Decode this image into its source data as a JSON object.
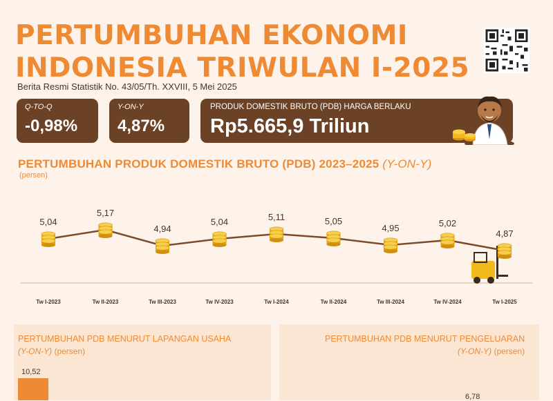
{
  "header": {
    "title_line1": "PERTUMBUHAN EKONOMI",
    "title_line2": "INDONESIA TRIWULAN I-2025",
    "subtitle": "Berita Resmi Statistik No. 43/05/Th. XXVIII, 5 Mei 2025"
  },
  "kpis": [
    {
      "label": "Q-TO-Q",
      "value": "-0,98%"
    },
    {
      "label": "Y-ON-Y",
      "value": "4,87%"
    },
    {
      "label": "PRODUK DOMESTIK BRUTO (PDB) HARGA BERLAKU",
      "value": "Rp5.665,9 Triliun"
    }
  ],
  "section": {
    "title": "PERTUMBUHAN PRODUK DOMESTIK BRUTO (PDB) 2023–2025",
    "title_suffix": "(Y-ON-Y)",
    "unit": "(persen)"
  },
  "chart_data": {
    "type": "line",
    "categories": [
      "Tw I-2023",
      "Tw II-2023",
      "Tw III-2023",
      "Tw IV-2023",
      "Tw I-2024",
      "Tw II-2024",
      "Tw III-2024",
      "Tw IV-2024",
      "Tw I-2025"
    ],
    "values": [
      5.04,
      5.17,
      4.94,
      5.04,
      5.11,
      5.05,
      4.95,
      5.02,
      4.87
    ],
    "value_labels": [
      "5,04",
      "5,17",
      "4,94",
      "5,04",
      "5,11",
      "5,05",
      "4,95",
      "5,02",
      "4,87"
    ],
    "marker": "coin-stack-icon",
    "line_color": "#7a4a2a",
    "grid": false
  },
  "bottom": {
    "left_title": "PERTUMBUHAN PDB MENURUT LAPANGAN USAHA",
    "left_unit_italic": "(Y-ON-Y)",
    "left_unit": "(persen)",
    "left_first_value": "10,52",
    "right_title": "PERTUMBUHAN PDB MENURUT PENGELUARAN",
    "right_unit_italic": "(Y-ON-Y)",
    "right_unit": "(persen)",
    "right_first_value": "6,78"
  },
  "colors": {
    "accent": "#ef8a34",
    "kpi_bg": "#6b4226",
    "background": "#fdf3ea",
    "coin": "#f2b91d"
  }
}
